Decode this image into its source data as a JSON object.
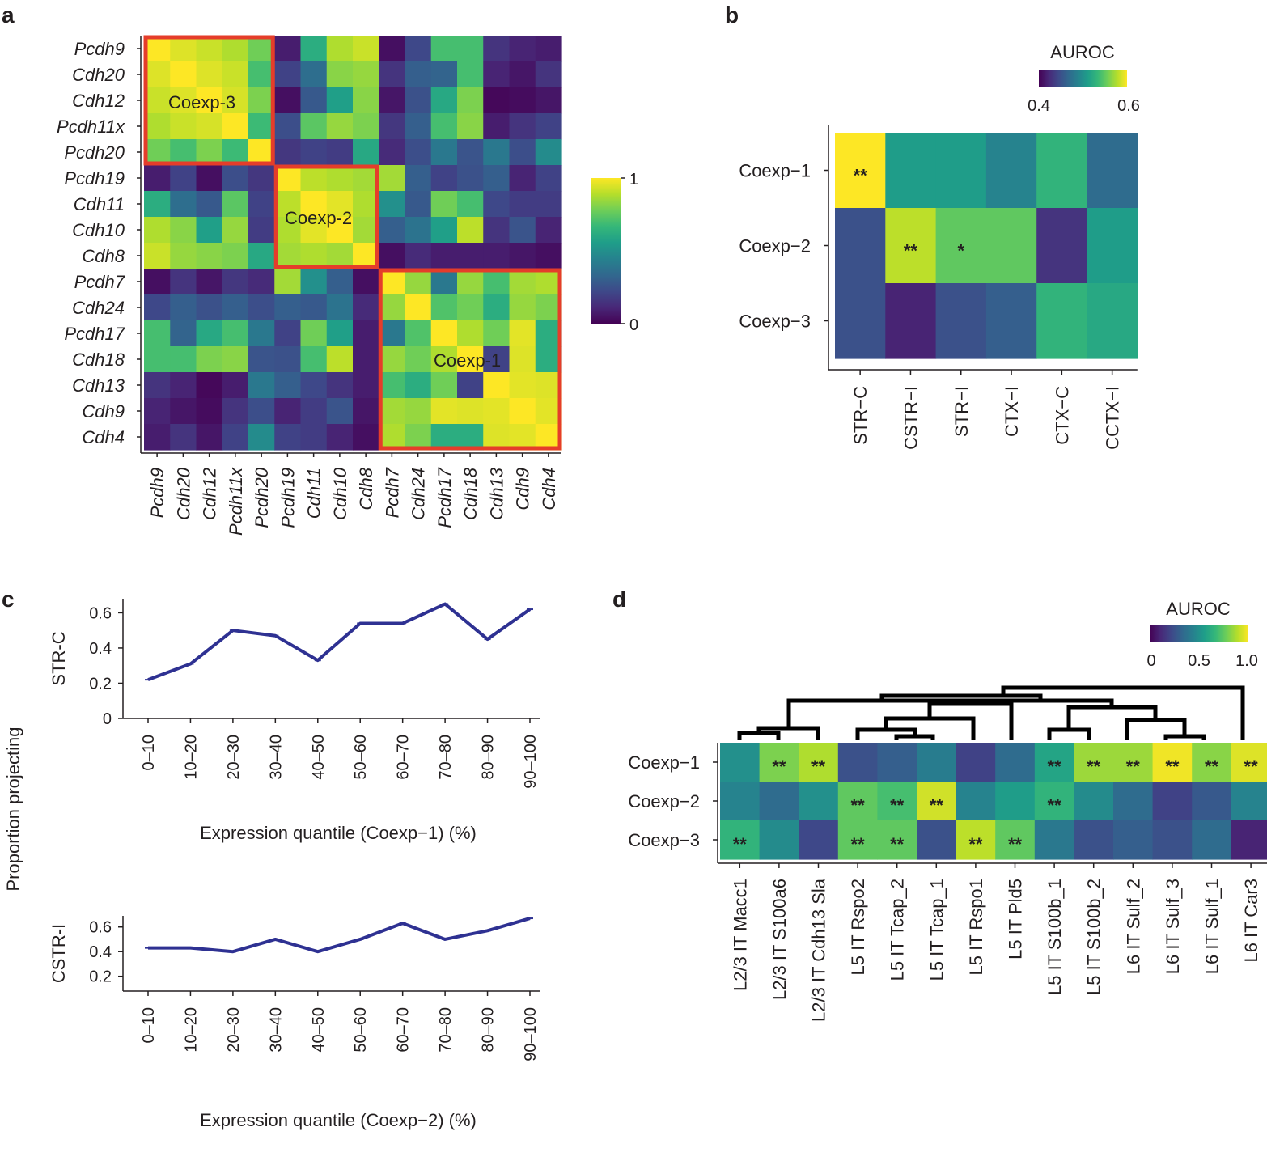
{
  "colors": {
    "viridis": [
      "#440154",
      "#482878",
      "#3e4989",
      "#31688e",
      "#26828e",
      "#1f9e89",
      "#35b779",
      "#6ece58",
      "#b5de2b",
      "#fde725"
    ],
    "line": "#2e3192",
    "highlight_box": "#e53d2a",
    "axis": "#231f20"
  },
  "chart_data": [
    {
      "panel": "a",
      "type": "heatmap",
      "genes": [
        "Pcdh9",
        "Cdh20",
        "Cdh12",
        "Pcdh11x",
        "Pcdh20",
        "Pcdh19",
        "Cdh11",
        "Cdh10",
        "Cdh8",
        "Pcdh7",
        "Cdh24",
        "Pcdh17",
        "Cdh18",
        "Cdh13",
        "Cdh9",
        "Cdh4"
      ],
      "matrix": [
        [
          1.0,
          0.95,
          0.92,
          0.88,
          0.78,
          0.08,
          0.62,
          0.88,
          0.92,
          0.04,
          0.22,
          0.7,
          0.7,
          0.15,
          0.1,
          0.08
        ],
        [
          0.95,
          1.0,
          0.95,
          0.92,
          0.7,
          0.2,
          0.36,
          0.82,
          0.84,
          0.15,
          0.3,
          0.32,
          0.7,
          0.1,
          0.06,
          0.15
        ],
        [
          0.92,
          0.95,
          1.0,
          0.94,
          0.8,
          0.04,
          0.28,
          0.56,
          0.82,
          0.06,
          0.25,
          0.6,
          0.8,
          0.02,
          0.03,
          0.06
        ],
        [
          0.88,
          0.92,
          0.94,
          1.0,
          0.68,
          0.24,
          0.74,
          0.84,
          0.8,
          0.16,
          0.3,
          0.7,
          0.82,
          0.08,
          0.15,
          0.2
        ],
        [
          0.78,
          0.7,
          0.8,
          0.68,
          1.0,
          0.16,
          0.2,
          0.18,
          0.6,
          0.12,
          0.24,
          0.4,
          0.26,
          0.4,
          0.24,
          0.48
        ],
        [
          0.08,
          0.2,
          0.04,
          0.24,
          0.16,
          1.0,
          0.9,
          0.88,
          0.86,
          0.86,
          0.3,
          0.2,
          0.25,
          0.3,
          0.1,
          0.2
        ],
        [
          0.62,
          0.36,
          0.28,
          0.74,
          0.2,
          0.9,
          1.0,
          0.96,
          0.88,
          0.5,
          0.28,
          0.78,
          0.7,
          0.22,
          0.18,
          0.18
        ],
        [
          0.88,
          0.82,
          0.56,
          0.84,
          0.18,
          0.88,
          0.96,
          1.0,
          0.86,
          0.3,
          0.38,
          0.56,
          0.9,
          0.15,
          0.26,
          0.1
        ],
        [
          0.92,
          0.84,
          0.82,
          0.8,
          0.6,
          0.86,
          0.88,
          0.86,
          1.0,
          0.04,
          0.12,
          0.08,
          0.08,
          0.08,
          0.06,
          0.04
        ],
        [
          0.04,
          0.15,
          0.06,
          0.16,
          0.12,
          0.86,
          0.5,
          0.3,
          0.04,
          1.0,
          0.84,
          0.4,
          0.84,
          0.7,
          0.86,
          0.88
        ],
        [
          0.22,
          0.3,
          0.25,
          0.3,
          0.24,
          0.3,
          0.28,
          0.38,
          0.12,
          0.84,
          1.0,
          0.72,
          0.78,
          0.62,
          0.84,
          0.8
        ],
        [
          0.7,
          0.32,
          0.6,
          0.7,
          0.4,
          0.2,
          0.78,
          0.56,
          0.08,
          0.4,
          0.72,
          1.0,
          0.88,
          0.78,
          0.96,
          0.62
        ],
        [
          0.7,
          0.7,
          0.8,
          0.82,
          0.26,
          0.25,
          0.7,
          0.9,
          0.08,
          0.84,
          0.78,
          0.88,
          1.0,
          0.2,
          0.95,
          0.62
        ],
        [
          0.15,
          0.1,
          0.02,
          0.08,
          0.4,
          0.3,
          0.22,
          0.15,
          0.08,
          0.7,
          0.62,
          0.78,
          0.2,
          1.0,
          0.96,
          0.95
        ],
        [
          0.1,
          0.06,
          0.03,
          0.15,
          0.24,
          0.1,
          0.18,
          0.26,
          0.06,
          0.86,
          0.84,
          0.96,
          0.95,
          0.96,
          1.0,
          0.96
        ],
        [
          0.08,
          0.15,
          0.06,
          0.2,
          0.48,
          0.2,
          0.18,
          0.1,
          0.04,
          0.88,
          0.8,
          0.62,
          0.62,
          0.95,
          0.96,
          1.0
        ]
      ],
      "clusters": [
        {
          "label": "Coexp-3",
          "start": 0,
          "end": 4
        },
        {
          "label": "Coexp-2",
          "start": 5,
          "end": 8
        },
        {
          "label": "Coexp-1",
          "start": 9,
          "end": 15
        }
      ],
      "colorbar": {
        "min": 0,
        "max": 1,
        "min_label": "0",
        "max_label": "1"
      }
    },
    {
      "panel": "b",
      "type": "heatmap",
      "rows": [
        "Coexp−1",
        "Coexp−2",
        "Coexp−3"
      ],
      "cols": [
        "STR−C",
        "CSTR−I",
        "STR−I",
        "CTX−I",
        "CTX−C",
        "CCTX−I"
      ],
      "values": [
        [
          0.6,
          0.51,
          0.51,
          0.49,
          0.53,
          0.47
        ],
        [
          0.45,
          0.58,
          0.55,
          0.55,
          0.43,
          0.51
        ],
        [
          0.45,
          0.42,
          0.45,
          0.46,
          0.53,
          0.52
        ]
      ],
      "stars": [
        [
          "**",
          "",
          "",
          "",
          "",
          ""
        ],
        [
          "",
          "**",
          "*",
          "",
          "",
          ""
        ],
        [
          "",
          "",
          "",
          "",
          "",
          ""
        ]
      ],
      "legend_title": "AUROC",
      "colorbar": {
        "min": 0.4,
        "max": 0.6,
        "tick_labels": [
          "0.4",
          "0.6"
        ]
      }
    },
    {
      "panel": "c",
      "type": "line",
      "categories": [
        "0–10",
        "10–20",
        "20–30",
        "30–40",
        "40–50",
        "50–60",
        "60–70",
        "70–80",
        "80–90",
        "90–100"
      ],
      "shared_ylabel": "Proportion projecting",
      "subplots": [
        {
          "ylabel": "STR-C",
          "xlabel": "Expression quantile (Coexp−1) (%)",
          "values": [
            0.22,
            0.31,
            0.5,
            0.47,
            0.33,
            0.54,
            0.54,
            0.65,
            0.45,
            0.62
          ],
          "ylim": [
            0,
            0.68
          ],
          "yticks": [
            "0",
            "0.2",
            "0.4",
            "0.6"
          ]
        },
        {
          "ylabel": "CSTR-I",
          "xlabel": "Expression quantile (Coexp−2) (%)",
          "values": [
            0.43,
            0.43,
            0.4,
            0.5,
            0.4,
            0.5,
            0.63,
            0.5,
            0.57,
            0.67
          ],
          "ylim": [
            0.08,
            0.69
          ],
          "yticks": [
            "0.2",
            "0.4",
            "0.6"
          ]
        }
      ]
    },
    {
      "panel": "d",
      "type": "heatmap",
      "rows": [
        "Coexp−1",
        "Coexp−2",
        "Coexp−3"
      ],
      "cols": [
        "L2/3 IT Macc1",
        "L2/3 IT S100a6",
        "L2/3 IT Cdh13 Sla",
        "L5 IT Rspo2",
        "L5 IT Tcap_2",
        "L5 IT Tcap_1",
        "L5 IT Rspo1",
        "L5 IT Pld5",
        "L5 IT S100b_1",
        "L5 IT S100b_2",
        "L6 IT Sulf_2",
        "L6 IT Sulf_3",
        "L6 IT Sulf_1",
        "L6 IT Car3"
      ],
      "values": [
        [
          0.5,
          0.8,
          0.88,
          0.25,
          0.3,
          0.42,
          0.2,
          0.35,
          0.58,
          0.85,
          0.85,
          0.98,
          0.82,
          0.95
        ],
        [
          0.45,
          0.35,
          0.5,
          0.75,
          0.7,
          0.93,
          0.45,
          0.55,
          0.65,
          0.48,
          0.35,
          0.2,
          0.28,
          0.45
        ],
        [
          0.65,
          0.48,
          0.22,
          0.75,
          0.75,
          0.25,
          0.9,
          0.75,
          0.4,
          0.25,
          0.3,
          0.25,
          0.35,
          0.1
        ]
      ],
      "stars": [
        [
          "",
          "**",
          "**",
          "",
          "",
          "",
          "",
          "",
          "**",
          "**",
          "**",
          "**",
          "**",
          "**"
        ],
        [
          "",
          "",
          "",
          "**",
          "**",
          "**",
          "",
          "",
          "**",
          "",
          "",
          "",
          "",
          ""
        ],
        [
          "**",
          "",
          "",
          "**",
          "**",
          "",
          "**",
          "**",
          "",
          "",
          "",
          "",
          "",
          ""
        ]
      ],
      "legend_title": "AUROC",
      "colorbar": {
        "min": 0,
        "max": 1,
        "tick_labels": [
          "0",
          "0.5",
          "1.0"
        ]
      }
    }
  ],
  "panels": {
    "a": {
      "letter": "a",
      "cluster_labels": [
        "Coexp-3",
        "Coexp-2",
        "Coexp-1"
      ]
    },
    "b": {
      "letter": "b"
    },
    "c": {
      "letter": "c"
    },
    "d": {
      "letter": "d"
    }
  }
}
